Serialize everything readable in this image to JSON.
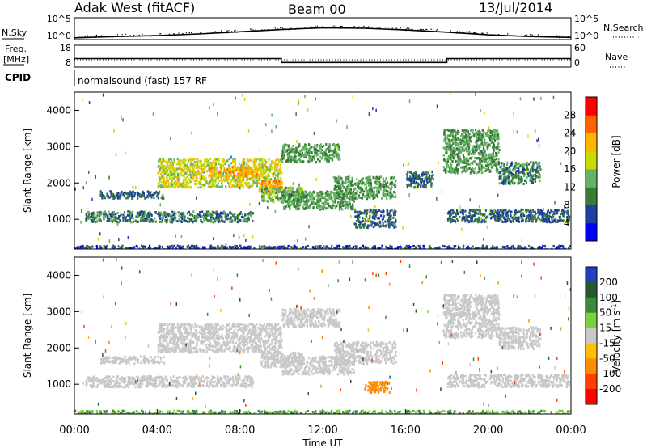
{
  "header": {
    "station": "Adak West (fitACF)",
    "beam": "Beam 00",
    "date": "13/Jul/2014"
  },
  "panels": {
    "nsky": {
      "left_label": "N.Sky",
      "right_label": "N.Search",
      "left_ticks": [
        "10^5",
        "10^0"
      ],
      "right_ticks": [
        "10^5",
        "10^0"
      ]
    },
    "freq": {
      "left_label_1": "Freq.",
      "left_label_2": "[MHz]",
      "left_ticks": [
        "18",
        "8"
      ],
      "right_label": "Nave",
      "right_ticks": [
        "60",
        "0"
      ]
    },
    "cpid": {
      "label": "CPID",
      "program": "normalsound (fast) 157 RF"
    }
  },
  "colors": {
    "power": [
      "#0000ff",
      "#1c3fa0",
      "#3a7a3a",
      "#64b464",
      "#c8dc00",
      "#ffb400",
      "#ff6400",
      "#ff0000"
    ],
    "velocity": [
      "#2040c0",
      "#245a2e",
      "#3a8a3a",
      "#7ad040",
      "#c8c8c8",
      "#ffc000",
      "#ff8c00",
      "#ff4000",
      "#ff0000"
    ],
    "bg": "#ffffff"
  },
  "chart_data": [
    {
      "type": "heatmap",
      "name": "power",
      "ylabel": "Slant Range [km]",
      "xlim": [
        0,
        24
      ],
      "ylim": [
        180,
        4500
      ],
      "y_ticks": [
        1000,
        2000,
        3000,
        4000
      ],
      "colorbar": {
        "label": "Power [dB]",
        "ticks": [
          4,
          8,
          12,
          16,
          20,
          24,
          28
        ],
        "range": [
          0,
          32
        ]
      },
      "echo_regions": [
        {
          "t0": 1.2,
          "t1": 4.3,
          "r0": 1600,
          "r1": 1800,
          "v": 8
        },
        {
          "t0": 0.5,
          "t1": 8.6,
          "r0": 950,
          "r1": 1250,
          "v": 10
        },
        {
          "t0": 4.0,
          "t1": 10.0,
          "r0": 1900,
          "r1": 2700,
          "v": 18
        },
        {
          "t0": 6.5,
          "t1": 9.0,
          "r0": 2200,
          "r1": 2500,
          "v": 22
        },
        {
          "t0": 9.0,
          "t1": 10.0,
          "r0": 1750,
          "r1": 2100,
          "v": 24
        },
        {
          "t0": 9.0,
          "t1": 11.0,
          "r0": 1500,
          "r1": 1900,
          "v": 14
        },
        {
          "t0": 10.0,
          "t1": 12.8,
          "r0": 2600,
          "r1": 3100,
          "v": 12
        },
        {
          "t0": 10.0,
          "t1": 13.5,
          "r0": 1300,
          "r1": 1800,
          "v": 12
        },
        {
          "t0": 12.5,
          "t1": 15.5,
          "r0": 1600,
          "r1": 2200,
          "v": 12
        },
        {
          "t0": 13.5,
          "t1": 15.5,
          "r0": 800,
          "r1": 1300,
          "v": 8
        },
        {
          "t0": 16.0,
          "t1": 17.3,
          "r0": 1900,
          "r1": 2350,
          "v": 8
        },
        {
          "t0": 17.8,
          "t1": 20.5,
          "r0": 2300,
          "r1": 3500,
          "v": 12
        },
        {
          "t0": 18.0,
          "t1": 23.9,
          "r0": 950,
          "r1": 1300,
          "v": 8
        },
        {
          "t0": 20.5,
          "t1": 22.5,
          "r0": 2000,
          "r1": 2600,
          "v": 10
        },
        {
          "t0": 0.0,
          "t1": 24.0,
          "r0": 180,
          "r1": 300,
          "v": 6
        }
      ]
    },
    {
      "type": "heatmap",
      "name": "velocity",
      "xlabel": "Time UT",
      "ylabel": "Slant Range [km]",
      "xlim": [
        0,
        24
      ],
      "ylim": [
        180,
        4500
      ],
      "y_ticks": [
        1000,
        2000,
        3000,
        4000
      ],
      "x_ticks": [
        "00:00",
        "04:00",
        "08:00",
        "12:00",
        "16:00",
        "20:00",
        "00:00"
      ],
      "colorbar": {
        "label": "Velocity [m s^-1]",
        "ticks": [
          200,
          100,
          50,
          15,
          -15,
          -50,
          -100,
          -200
        ]
      },
      "echo_regions": [
        {
          "t0": 1.2,
          "t1": 4.3,
          "r0": 1600,
          "r1": 1800,
          "v": 0
        },
        {
          "t0": 0.5,
          "t1": 8.6,
          "r0": 950,
          "r1": 1250,
          "v": 0
        },
        {
          "t0": 4.0,
          "t1": 10.0,
          "r0": 1900,
          "r1": 2700,
          "v": 0
        },
        {
          "t0": 9.0,
          "t1": 11.0,
          "r0": 1500,
          "r1": 1900,
          "v": 0
        },
        {
          "t0": 10.0,
          "t1": 12.8,
          "r0": 2600,
          "r1": 3100,
          "v": 10
        },
        {
          "t0": 10.0,
          "t1": 13.5,
          "r0": 1300,
          "r1": 1800,
          "v": 0
        },
        {
          "t0": 12.5,
          "t1": 15.5,
          "r0": 1600,
          "r1": 2200,
          "v": -10
        },
        {
          "t0": 14.0,
          "t1": 15.2,
          "r0": 800,
          "r1": 1100,
          "v": -60
        },
        {
          "t0": 17.8,
          "t1": 20.5,
          "r0": 2300,
          "r1": 3500,
          "v": 0
        },
        {
          "t0": 18.0,
          "t1": 23.9,
          "r0": 950,
          "r1": 1300,
          "v": 0
        },
        {
          "t0": 20.5,
          "t1": 22.5,
          "r0": 2000,
          "r1": 2600,
          "v": 0
        },
        {
          "t0": 0.0,
          "t1": 24.0,
          "r0": 180,
          "r1": 300,
          "v": 30
        }
      ]
    }
  ],
  "nsky_trace": {
    "t": [
      0,
      2,
      4,
      6,
      8,
      10,
      12,
      14,
      16,
      18,
      20,
      22,
      24
    ],
    "log_value": [
      0.4,
      0.7,
      0.9,
      1.3,
      1.8,
      2.3,
      2.7,
      2.6,
      2.2,
      1.7,
      1.1,
      0.7,
      0.5
    ]
  },
  "freq_trace": {
    "t": [
      0,
      10,
      10,
      18,
      18,
      24
    ],
    "mhz": [
      13,
      13,
      10.5,
      10.5,
      13,
      13
    ]
  }
}
